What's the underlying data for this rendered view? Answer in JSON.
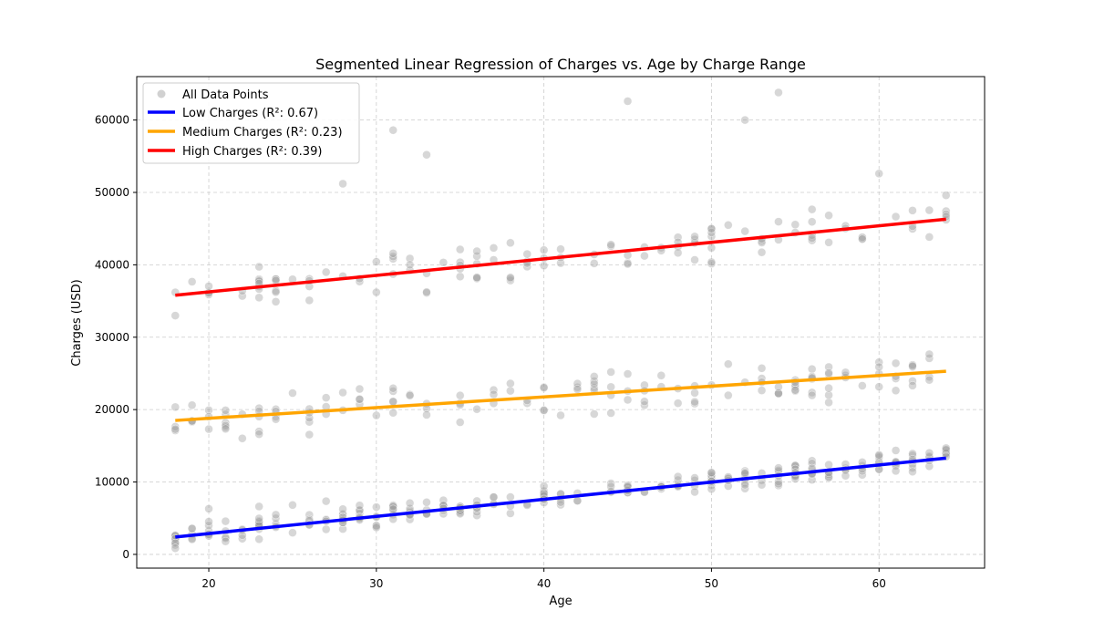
{
  "chart_data": {
    "type": "scatter",
    "title": "Segmented Linear Regression of Charges vs. Age by Charge Range",
    "xlabel": "Age",
    "ylabel": "Charges (USD)",
    "xlim": [
      15.7,
      66.3
    ],
    "ylim": [
      -1900,
      66000
    ],
    "xticks": [
      20,
      30,
      40,
      50,
      60
    ],
    "yticks": [
      0,
      10000,
      20000,
      30000,
      40000,
      50000,
      60000
    ],
    "grid": true,
    "legend_position": "top-left",
    "colors": {
      "points": "#9a9a9a",
      "low": "#0000ff",
      "medium": "#ffa500",
      "high": "#ff0000",
      "grid": "#cccccc"
    },
    "scatter_series": {
      "name": "All Data Points",
      "age_range": [
        18,
        64
      ],
      "bands": [
        {
          "segment": "low",
          "base": 2500,
          "slope": 237,
          "spread": 1800,
          "count": 280,
          "outlier_max": 7500
        },
        {
          "segment": "medium",
          "base": 18500,
          "slope": 148,
          "spread": 3500,
          "count": 150
        },
        {
          "segment": "high",
          "base": 35800,
          "slope": 229,
          "spread": 3500,
          "count": 130
        }
      ],
      "outliers": [
        {
          "x": 28,
          "y": 51200
        },
        {
          "x": 31,
          "y": 58600
        },
        {
          "x": 33,
          "y": 55200
        },
        {
          "x": 45,
          "y": 62600
        },
        {
          "x": 52,
          "y": 60000
        },
        {
          "x": 54,
          "y": 63800
        },
        {
          "x": 60,
          "y": 52600
        },
        {
          "x": 64,
          "y": 49600
        }
      ]
    },
    "series": [
      {
        "name": "Low Charges (R²: 0.67)",
        "color": "#0000ff",
        "x": [
          18,
          64
        ],
        "y": [
          2400,
          13300
        ]
      },
      {
        "name": "Medium Charges (R²: 0.23)",
        "color": "#ffa500",
        "x": [
          18,
          64
        ],
        "y": [
          18500,
          25300
        ]
      },
      {
        "name": "High Charges (R²: 0.39)",
        "color": "#ff0000",
        "x": [
          18,
          64
        ],
        "y": [
          35800,
          46300
        ]
      }
    ]
  }
}
